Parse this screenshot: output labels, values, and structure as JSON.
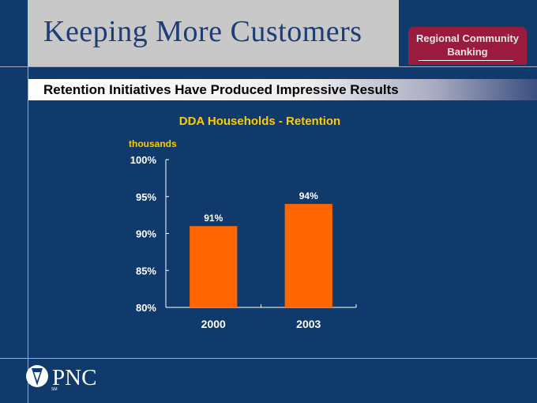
{
  "slide": {
    "title": "Keeping More Customers",
    "badge_line1": "Regional Community",
    "badge_line2": "Banking",
    "subtitle": "Retention Initiatives Have Produced Impressive Results",
    "logo_text": "PNC",
    "logo_tm": "SM"
  },
  "colors": {
    "background": "#103a6b",
    "bar": "#ff6600",
    "title_text": "#1d3d78",
    "chart_title": "#ffcc00",
    "badge": "#9b1b3f"
  },
  "chart_data": {
    "type": "bar",
    "title": "DDA Households - Retention",
    "unit_label": "thousands",
    "categories": [
      "2000",
      "2003"
    ],
    "values": [
      91,
      94
    ],
    "data_labels": [
      "91%",
      "94%"
    ],
    "ylim": [
      80,
      100
    ],
    "yticks": [
      80,
      85,
      90,
      95,
      100
    ],
    "ytick_labels": [
      "80%",
      "85%",
      "90%",
      "95%",
      "100%"
    ],
    "grid": false,
    "legend": "none"
  }
}
